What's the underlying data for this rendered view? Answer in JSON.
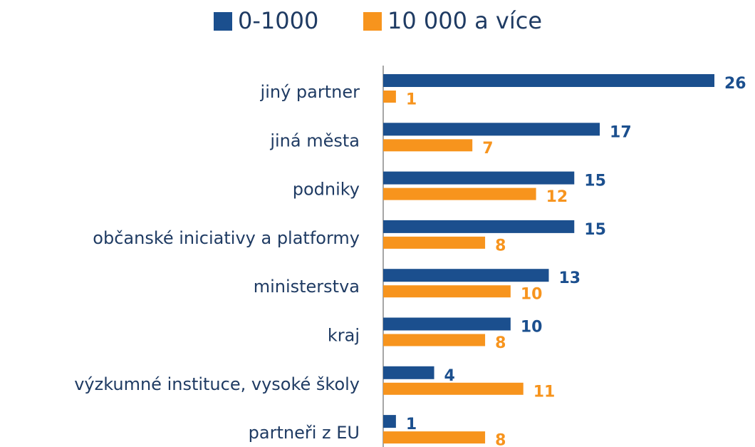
{
  "chart_data": {
    "type": "hbar",
    "categories": [
      "jiný partner",
      "jiná města",
      "podniky",
      "občanské iniciativy a platformy",
      "ministerstva",
      "kraj",
      "výzkumné instituce, vysoké školy",
      "partneři z EU"
    ],
    "series": [
      {
        "name": "0-1000",
        "color": "#1b4f8e",
        "values": [
          26,
          17,
          15,
          15,
          13,
          10,
          4,
          1
        ]
      },
      {
        "name": "10 000 a více",
        "color": "#f7941d",
        "values": [
          1,
          7,
          12,
          8,
          10,
          8,
          11,
          8
        ]
      }
    ],
    "legend": "top"
  }
}
